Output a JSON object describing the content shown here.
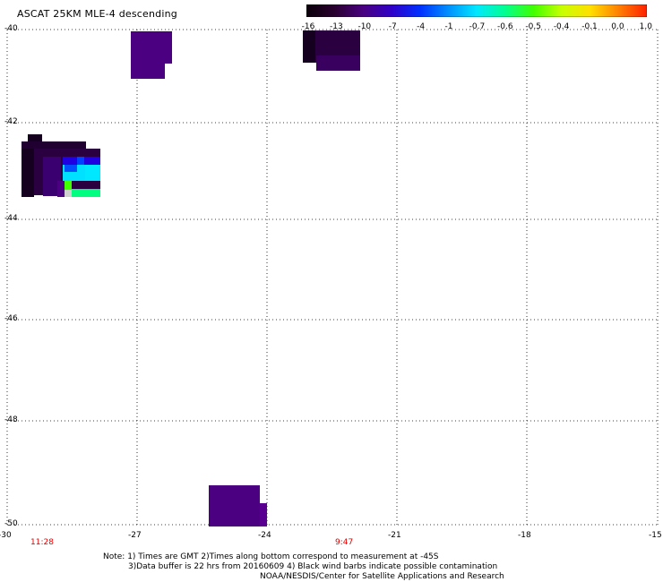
{
  "title": "ASCAT 25KM MLE-4 descending",
  "colorbar": {
    "labels": [
      "-16",
      "-13",
      "-10",
      "-7",
      "-4",
      "-1",
      "-0.7",
      "-0.6",
      "-0.5",
      "-0.4",
      "-0.1",
      "0.0",
      "1.0"
    ],
    "colors": [
      "#0a0008",
      "#2a0030",
      "#4a0080",
      "#3000c8",
      "#0030ff",
      "#0090ff",
      "#00e8ff",
      "#00ff90",
      "#40ff00",
      "#c8ff00",
      "#ffe000",
      "#ff8000",
      "#ff2000"
    ]
  },
  "y_axis": {
    "labels": [
      "-40",
      "-42",
      "-44",
      "-46",
      "-48",
      "-50"
    ]
  },
  "x_axis": {
    "labels": [
      "-30",
      "-27",
      "-24",
      "-21",
      "-18",
      "-15"
    ]
  },
  "times": [
    "11:28",
    "9:47"
  ],
  "notes": {
    "line1": "Note: 1) Times are GMT 2)Times along bottom correspond to measurement at -45S",
    "line2": "3)Data buffer is 22 hrs from 20160609 4) Black wind barbs indicate possible contamination",
    "line3": "NOAA/NESDIS/Center for Satellite Applications and Research"
  },
  "swaths": [
    {
      "name": "swath-top-left",
      "color": "#4a0080"
    },
    {
      "name": "swath-top-right",
      "color": "#2a0050"
    },
    {
      "name": "swath-left",
      "color": "#2a0030"
    },
    {
      "name": "swath-bottom",
      "color": "#4a0080"
    }
  ]
}
